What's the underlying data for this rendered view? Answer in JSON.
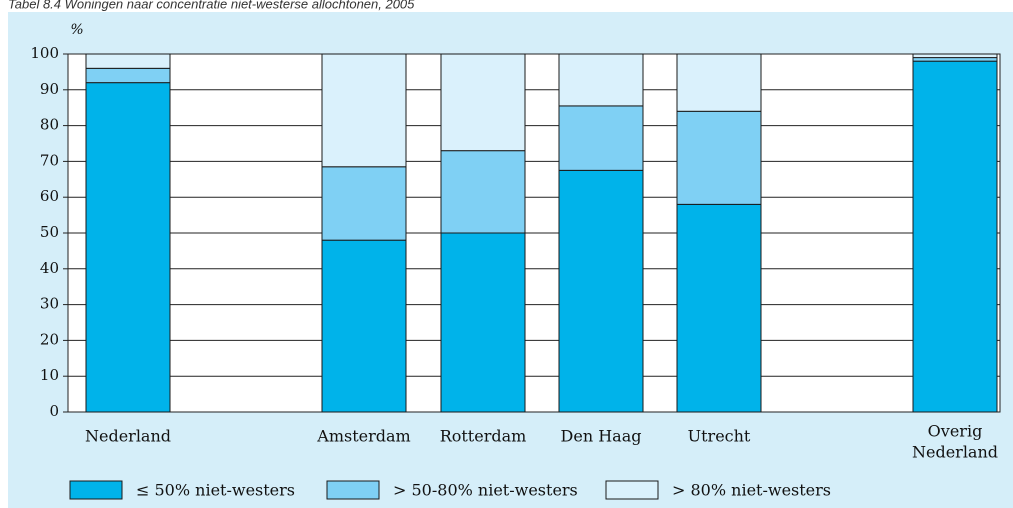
{
  "header": {
    "note": "Tabel 8.4 Woningen naar concentratie niet-westerse allochtonen, 2005"
  },
  "colors": {
    "panel_bg": "#d5eef9",
    "plot_bg": "#ffffff",
    "series": [
      "#00b3ea",
      "#7fd0f4",
      "#daf1fc"
    ]
  },
  "chart_data": {
    "type": "bar",
    "stacked": true,
    "unit_label": "%",
    "categories": [
      "Nederland",
      "Amsterdam",
      "Rotterdam",
      "Den Haag",
      "Utrecht",
      "Overig Nederland"
    ],
    "category_lines": [
      [
        "Nederland"
      ],
      [
        "Amsterdam"
      ],
      [
        "Rotterdam"
      ],
      [
        "Den Haag"
      ],
      [
        "Utrecht"
      ],
      [
        "Overig",
        "Nederland"
      ]
    ],
    "series": [
      {
        "name": "≤ 50% niet-westers",
        "values": [
          92,
          48,
          50,
          67.5,
          58,
          98
        ]
      },
      {
        "name": "> 50-80% niet-westers",
        "values": [
          4,
          20.5,
          23,
          18,
          26,
          1
        ]
      },
      {
        "name": "> 80% niet-westers",
        "values": [
          4,
          31.5,
          27,
          14.5,
          16,
          1
        ]
      }
    ],
    "ylim": [
      0,
      100
    ],
    "yticks": [
      0,
      10,
      20,
      30,
      40,
      50,
      60,
      70,
      80,
      90,
      100
    ],
    "grid": true,
    "legend_position": "bottom"
  }
}
